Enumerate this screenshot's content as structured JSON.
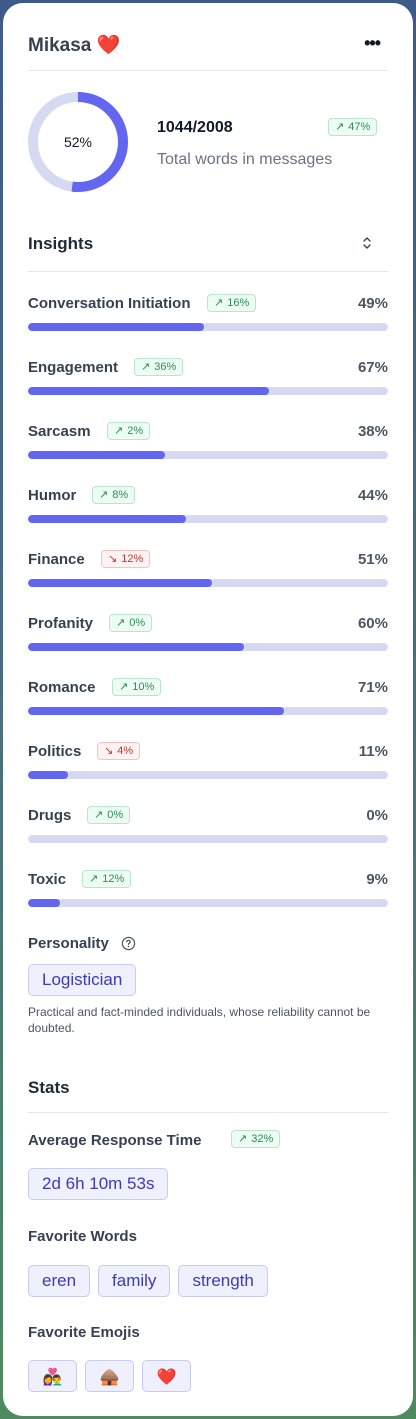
{
  "header": {
    "name": "Mikasa",
    "emoji": "❤️",
    "menu_icon": "more-horizontal-icon"
  },
  "words": {
    "percent": "52%",
    "fraction": 0.52,
    "count": "1044/2008",
    "label": "Total words in messages",
    "change": "47%",
    "trend": "up"
  },
  "insights": {
    "title": "Insights",
    "items": [
      {
        "label": "Conversation Initiation",
        "change": "16%",
        "trend": "up",
        "value": "49%",
        "fraction": 0.49
      },
      {
        "label": "Engagement",
        "change": "36%",
        "trend": "up",
        "value": "67%",
        "fraction": 0.67
      },
      {
        "label": "Sarcasm",
        "change": "2%",
        "trend": "up",
        "value": "38%",
        "fraction": 0.38
      },
      {
        "label": "Humor",
        "change": "8%",
        "trend": "up",
        "value": "44%",
        "fraction": 0.44
      },
      {
        "label": "Finance",
        "change": "12%",
        "trend": "down",
        "value": "51%",
        "fraction": 0.51
      },
      {
        "label": "Profanity",
        "change": "0%",
        "trend": "up",
        "value": "60%",
        "fraction": 0.6
      },
      {
        "label": "Romance",
        "change": "10%",
        "trend": "up",
        "value": "71%",
        "fraction": 0.71
      },
      {
        "label": "Politics",
        "change": "4%",
        "trend": "down",
        "value": "11%",
        "fraction": 0.11
      },
      {
        "label": "Drugs",
        "change": "0%",
        "trend": "up",
        "value": "0%",
        "fraction": 0.0
      },
      {
        "label": "Toxic",
        "change": "12%",
        "trend": "up",
        "value": "9%",
        "fraction": 0.09
      }
    ]
  },
  "personality": {
    "label": "Personality",
    "type": "Logistician",
    "description": "Practical and fact-minded individuals, whose reliability cannot be doubted."
  },
  "stats": {
    "title": "Stats",
    "response_time": {
      "label": "Average Response Time",
      "change": "32%",
      "trend": "up",
      "value": "2d 6h 10m 53s"
    },
    "favorite_words": {
      "label": "Favorite Words",
      "items": [
        "eren",
        "family",
        "strength"
      ]
    },
    "favorite_emojis": {
      "label": "Favorite Emojis",
      "items": [
        "👩‍❤️‍👨",
        "🛖",
        "❤️"
      ]
    }
  },
  "colors": {
    "accent": "#6366f1",
    "track": "#d5d9f2",
    "up": "#2f8a55",
    "down": "#c0392b"
  }
}
